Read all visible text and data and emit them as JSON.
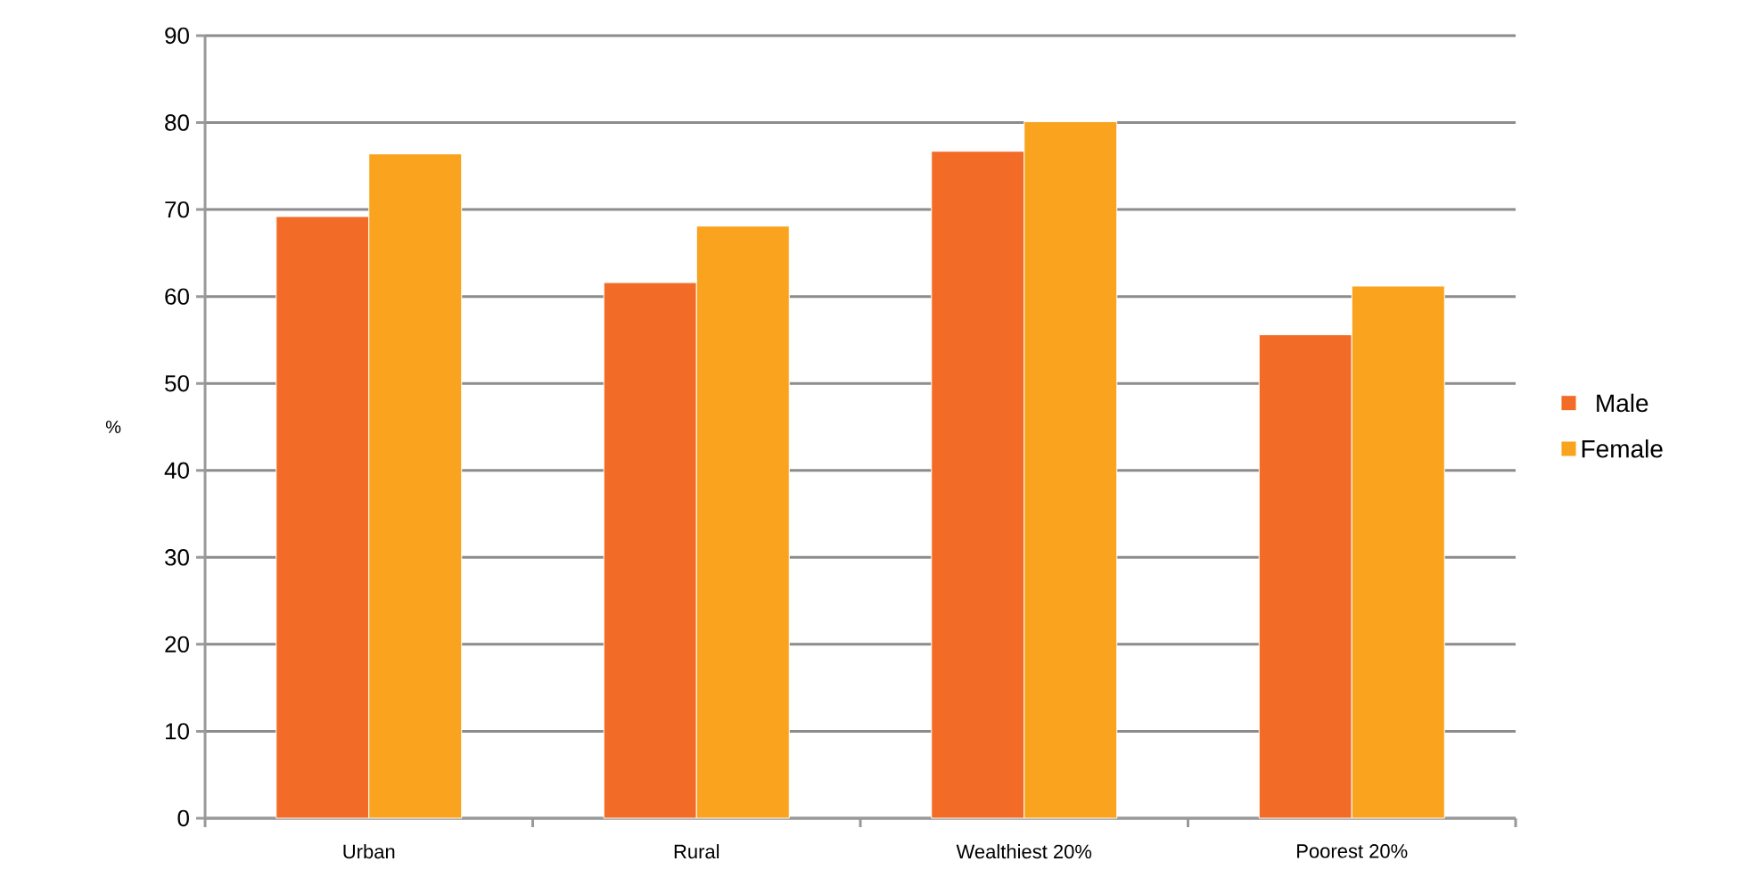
{
  "chart_data": {
    "type": "bar",
    "ylabel": "%",
    "categories": [
      "Urban",
      "Rural",
      "Wealthiest 20%",
      "Poorest 20%"
    ],
    "series": [
      {
        "name": "Male",
        "color": "#f26c28",
        "values": [
          69.2,
          61.6,
          76.7,
          55.6
        ]
      },
      {
        "name": "Female",
        "color": "#f9a31e",
        "values": [
          76.4,
          68.1,
          80.1,
          61.2
        ]
      }
    ],
    "ylim": [
      0,
      90
    ],
    "yticks": [
      0,
      10,
      20,
      30,
      40,
      50,
      60,
      70,
      80,
      90
    ],
    "grid": "y",
    "legend": "right"
  }
}
